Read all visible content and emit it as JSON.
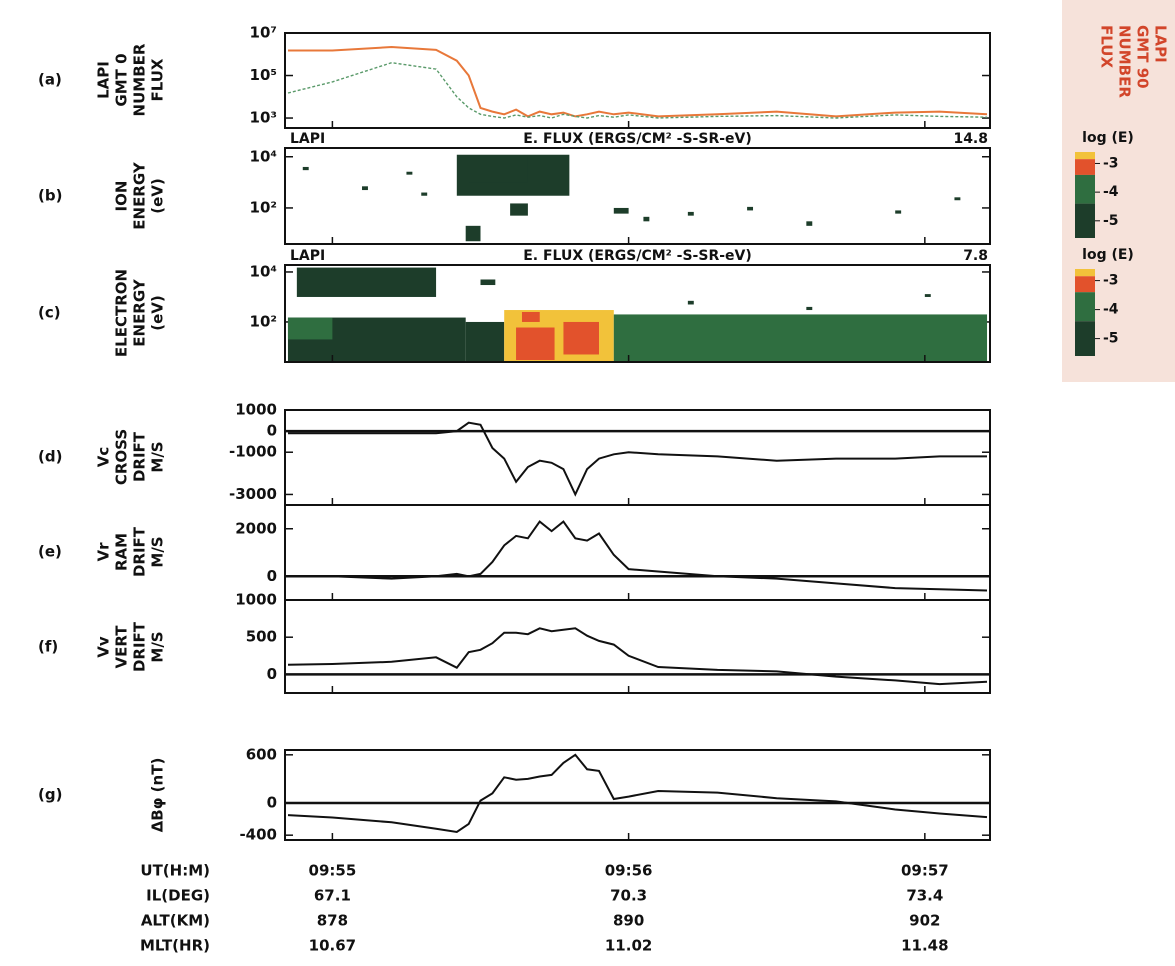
{
  "chart_data": [
    {
      "type": "line",
      "label": "(a)",
      "ylabel": [
        "LAPI",
        "GMT 0",
        "NUMBER",
        "FLUX"
      ],
      "side_label": [
        "LAPI",
        "GMT 90",
        "NUMBER",
        "FLUX"
      ],
      "log": true,
      "xlim": [
        54.84,
        57.22
      ],
      "ylim": [
        340,
        10000000
      ],
      "yticks": [
        {
          "value": 1000,
          "label": "10³"
        },
        {
          "value": 100000,
          "label": "10⁵"
        },
        {
          "value": 10000000,
          "label": "10⁷"
        }
      ],
      "x": [
        54.85,
        55.0,
        55.2,
        55.35,
        55.42,
        55.46,
        55.5,
        55.54,
        55.58,
        55.62,
        55.66,
        55.7,
        55.74,
        55.78,
        55.82,
        55.86,
        55.9,
        55.95,
        56.0,
        56.1,
        56.3,
        56.5,
        56.7,
        56.9,
        57.05,
        57.21
      ],
      "series": [
        {
          "color": "#e8783a",
          "dash": false,
          "values": [
            1500000,
            1500000,
            2200000,
            1600000,
            500000,
            100000,
            3000,
            2000,
            1500,
            2500,
            1200,
            2000,
            1500,
            1800,
            1200,
            1500,
            2000,
            1500,
            1800,
            1200,
            1500,
            2000,
            1200,
            1800,
            2000,
            1500
          ]
        },
        {
          "color": "#5a9a6a",
          "dash": true,
          "values": [
            15000,
            50000,
            400000,
            200000,
            10000,
            3000,
            1500,
            1200,
            1000,
            1400,
            1100,
            1300,
            1000,
            1500,
            1200,
            1000,
            1300,
            1100,
            1400,
            1000,
            1200,
            1300,
            1000,
            1400,
            1200,
            1100
          ]
        }
      ]
    },
    {
      "type": "heatmap",
      "label": "(b)",
      "ylabel": [
        "ION",
        "ENERGY",
        "(eV)"
      ],
      "log": true,
      "header": {
        "left": "LAPI",
        "center": "E. FLUX (ERGS/CM² -S-SR-eV)",
        "right": "14.8"
      },
      "xlim": [
        54.84,
        57.22
      ],
      "ylim": [
        3.9,
        22000
      ],
      "yticks": [
        {
          "value": 100,
          "label": "10²"
        },
        {
          "value": 10000,
          "label": "10⁴"
        }
      ],
      "regions": [
        {
          "x": [
            55.42,
            55.8
          ],
          "y": [
            300,
            12000
          ],
          "value": -4.5
        },
        {
          "x": [
            55.46,
            55.66
          ],
          "y": [
            1000,
            10000
          ],
          "value": -4.8
        },
        {
          "x": [
            55.6,
            55.66
          ],
          "y": [
            50,
            150
          ],
          "value": -4.6
        },
        {
          "x": [
            55.45,
            55.5
          ],
          "y": [
            5,
            20
          ],
          "value": -5
        },
        {
          "x": [
            54.9,
            54.92
          ],
          "y": [
            3000,
            4000
          ],
          "value": -5
        },
        {
          "x": [
            55.1,
            55.12
          ],
          "y": [
            500,
            700
          ],
          "value": -5
        },
        {
          "x": [
            55.25,
            55.27
          ],
          "y": [
            2000,
            2600
          ],
          "value": -5
        },
        {
          "x": [
            55.3,
            55.32
          ],
          "y": [
            300,
            400
          ],
          "value": -5
        },
        {
          "x": [
            55.95,
            56.0
          ],
          "y": [
            60,
            100
          ],
          "value": -4.5
        },
        {
          "x": [
            56.05,
            56.07
          ],
          "y": [
            30,
            45
          ],
          "value": -5
        },
        {
          "x": [
            56.2,
            56.22
          ],
          "y": [
            50,
            70
          ],
          "value": -5
        },
        {
          "x": [
            56.4,
            56.42
          ],
          "y": [
            80,
            110
          ],
          "value": -5
        },
        {
          "x": [
            56.6,
            56.62
          ],
          "y": [
            20,
            30
          ],
          "value": -5
        },
        {
          "x": [
            56.9,
            56.92
          ],
          "y": [
            60,
            80
          ],
          "value": -5
        },
        {
          "x": [
            57.1,
            57.12
          ],
          "y": [
            200,
            260
          ],
          "value": -5
        }
      ],
      "colorbar": {
        "title": "log (E)",
        "lim": [
          -5.6,
          -2.6
        ],
        "ticks": [
          -3,
          -4,
          -5
        ],
        "levels": [
          {
            "range": [
              -2.6,
              -2.85
            ],
            "color": "#f2c23a"
          },
          {
            "range": [
              -2.85,
              -3.4
            ],
            "color": "#e2522c"
          },
          {
            "range": [
              -3.4,
              -4.4
            ],
            "color": "#2f6e40"
          },
          {
            "range": [
              -4.4,
              -5.6
            ],
            "color": "#1d3d2a"
          }
        ]
      }
    },
    {
      "type": "heatmap",
      "label": "(c)",
      "ylabel": [
        "ELECTRON",
        "ENERGY",
        "(eV)"
      ],
      "log": true,
      "header": {
        "left": "LAPI",
        "center": "E. FLUX (ERGS/CM² -S-SR-eV)",
        "right": "7.8"
      },
      "xlim": [
        54.84,
        57.22
      ],
      "ylim": [
        2.5,
        19000
      ],
      "yticks": [
        {
          "value": 100,
          "label": "10²"
        },
        {
          "value": 10000,
          "label": "10⁴"
        }
      ],
      "regions": [
        {
          "x": [
            54.85,
            55.45
          ],
          "y": [
            2.5,
            150
          ],
          "value": -5.2
        },
        {
          "x": [
            54.88,
            55.35
          ],
          "y": [
            1000,
            15000
          ],
          "value": -5.2
        },
        {
          "x": [
            54.85,
            55.0
          ],
          "y": [
            20,
            150
          ],
          "value": -4
        },
        {
          "x": [
            55.45,
            55.58
          ],
          "y": [
            2.5,
            100
          ],
          "value": -4.6
        },
        {
          "x": [
            55.58,
            55.95
          ],
          "y": [
            2.5,
            300
          ],
          "value": -2.7
        },
        {
          "x": [
            55.62,
            55.75
          ],
          "y": [
            3,
            60
          ],
          "value": -3
        },
        {
          "x": [
            55.78,
            55.9
          ],
          "y": [
            5,
            100
          ],
          "value": -3
        },
        {
          "x": [
            55.64,
            55.7
          ],
          "y": [
            100,
            250
          ],
          "value": -3
        },
        {
          "x": [
            55.95,
            57.21
          ],
          "y": [
            2.5,
            200
          ],
          "value": -4
        },
        {
          "x": [
            55.5,
            55.55
          ],
          "y": [
            3000,
            5000
          ],
          "value": -5
        },
        {
          "x": [
            56.2,
            56.22
          ],
          "y": [
            500,
            700
          ],
          "value": -5
        },
        {
          "x": [
            56.6,
            56.62
          ],
          "y": [
            300,
            400
          ],
          "value": -5
        },
        {
          "x": [
            57.0,
            57.02
          ],
          "y": [
            1000,
            1300
          ],
          "value": -5
        }
      ],
      "colorbar": {
        "title": "log (E)",
        "lim": [
          -5.6,
          -2.6
        ],
        "ticks": [
          -3,
          -4,
          -5
        ],
        "levels": [
          {
            "range": [
              -2.6,
              -2.85
            ],
            "color": "#f2c23a"
          },
          {
            "range": [
              -2.85,
              -3.4
            ],
            "color": "#e2522c"
          },
          {
            "range": [
              -3.4,
              -4.4
            ],
            "color": "#2f6e40"
          },
          {
            "range": [
              -4.4,
              -5.6
            ],
            "color": "#1d3d2a"
          }
        ]
      }
    },
    {
      "type": "line",
      "label": "(d)",
      "ylabel": [
        "Vc",
        "CROSS",
        "DRIFT",
        "M/S"
      ],
      "log": false,
      "xlim": [
        54.84,
        57.22
      ],
      "ylim": [
        -3500,
        1000
      ],
      "yticks": [
        -3000,
        -1000,
        0,
        1000
      ],
      "x": [
        54.85,
        55.0,
        55.2,
        55.35,
        55.42,
        55.46,
        55.5,
        55.54,
        55.58,
        55.62,
        55.66,
        55.7,
        55.74,
        55.78,
        55.82,
        55.86,
        55.9,
        55.95,
        56.0,
        56.1,
        56.3,
        56.5,
        56.7,
        56.9,
        57.05,
        57.21
      ],
      "series": [
        {
          "color": "#111111",
          "dash": false,
          "values": [
            -100,
            -100,
            -100,
            -100,
            0,
            400,
            300,
            -800,
            -1300,
            -2400,
            -1700,
            -1400,
            -1500,
            -1800,
            -3000,
            -1800,
            -1300,
            -1100,
            -1000,
            -1100,
            -1200,
            -1400,
            -1300,
            -1300,
            -1200,
            -1200
          ]
        }
      ]
    },
    {
      "type": "line",
      "label": "(e)",
      "ylabel": [
        "Vr",
        "RAM",
        "DRIFT",
        "M/S"
      ],
      "log": false,
      "xlim": [
        54.84,
        57.22
      ],
      "ylim": [
        -1000,
        3000
      ],
      "yticks": [
        0,
        2000
      ],
      "x": [
        54.85,
        55.0,
        55.2,
        55.35,
        55.42,
        55.46,
        55.5,
        55.54,
        55.58,
        55.62,
        55.66,
        55.7,
        55.74,
        55.78,
        55.82,
        55.86,
        55.9,
        55.95,
        56.0,
        56.1,
        56.3,
        56.5,
        56.7,
        56.9,
        57.05,
        57.21
      ],
      "series": [
        {
          "color": "#111111",
          "dash": false,
          "values": [
            0,
            0,
            -100,
            0,
            100,
            0,
            100,
            600,
            1300,
            1700,
            1600,
            2300,
            1900,
            2300,
            1600,
            1500,
            1800,
            900,
            300,
            200,
            0,
            -100,
            -300,
            -500,
            -550,
            -600
          ]
        }
      ]
    },
    {
      "type": "line",
      "label": "(f)",
      "ylabel": [
        "Vv",
        "VERT",
        "DRIFT",
        "M/S"
      ],
      "log": false,
      "xlim": [
        54.84,
        57.22
      ],
      "ylim": [
        -250,
        1000
      ],
      "yticks": [
        0,
        500,
        1000
      ],
      "x": [
        54.85,
        55.0,
        55.2,
        55.35,
        55.42,
        55.46,
        55.5,
        55.54,
        55.58,
        55.62,
        55.66,
        55.7,
        55.74,
        55.78,
        55.82,
        55.86,
        55.9,
        55.95,
        56.0,
        56.1,
        56.3,
        56.5,
        56.7,
        56.9,
        57.05,
        57.21
      ],
      "series": [
        {
          "color": "#111111",
          "dash": false,
          "values": [
            130,
            140,
            170,
            230,
            90,
            300,
            330,
            420,
            560,
            560,
            540,
            620,
            580,
            600,
            620,
            520,
            450,
            400,
            250,
            100,
            60,
            40,
            -30,
            -80,
            -130,
            -100
          ]
        }
      ]
    },
    {
      "type": "line",
      "label": "(g)",
      "ylabel": [
        "ΔBφ (nT)"
      ],
      "log": false,
      "xlim": [
        54.84,
        57.22
      ],
      "ylim": [
        -460,
        660
      ],
      "yticks": [
        -400,
        0,
        600
      ],
      "xlabel": "UT(H:M)",
      "xticks": [
        {
          "value": 55,
          "label": "09:55"
        },
        {
          "value": 56,
          "label": "09:56"
        },
        {
          "value": 57,
          "label": "09:57"
        }
      ],
      "x": [
        54.85,
        55.0,
        55.2,
        55.35,
        55.42,
        55.46,
        55.5,
        55.54,
        55.58,
        55.62,
        55.66,
        55.7,
        55.74,
        55.78,
        55.82,
        55.86,
        55.9,
        55.95,
        56.0,
        56.1,
        56.3,
        56.5,
        56.7,
        56.9,
        57.05,
        57.21
      ],
      "series": [
        {
          "color": "#111111",
          "dash": false,
          "values": [
            -150,
            -180,
            -240,
            -320,
            -360,
            -260,
            30,
            120,
            320,
            290,
            300,
            330,
            350,
            500,
            600,
            420,
            400,
            50,
            80,
            150,
            130,
            60,
            20,
            -80,
            -130,
            -175
          ]
        }
      ]
    }
  ],
  "ephemeris": {
    "rows": [
      {
        "label": "IL(DEG)",
        "values": [
          "67.1",
          "70.3",
          "73.4"
        ]
      },
      {
        "label": "ALT(KM)",
        "values": [
          "878",
          "890",
          "902"
        ]
      },
      {
        "label": "MLT(HR)",
        "values": [
          "10.67",
          "11.02",
          "11.48"
        ]
      }
    ]
  }
}
